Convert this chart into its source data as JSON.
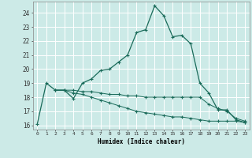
{
  "xlabel": "Humidex (Indice chaleur)",
  "background_color": "#cceae7",
  "grid_color": "#ffffff",
  "line_color": "#1a6b5a",
  "xlim": [
    -0.5,
    23.5
  ],
  "ylim": [
    15.7,
    24.8
  ],
  "xticks": [
    0,
    1,
    2,
    3,
    4,
    5,
    6,
    7,
    8,
    9,
    10,
    11,
    12,
    13,
    14,
    15,
    16,
    17,
    18,
    19,
    20,
    21,
    22,
    23
  ],
  "yticks": [
    16,
    17,
    18,
    19,
    20,
    21,
    22,
    23,
    24
  ],
  "line1_x": [
    0,
    1,
    2,
    3,
    4,
    5,
    6,
    7,
    8,
    9,
    10,
    11,
    12,
    13,
    14,
    15,
    16,
    17,
    18,
    19,
    20,
    21,
    22,
    23
  ],
  "line1_y": [
    16.1,
    19.0,
    18.5,
    18.5,
    17.9,
    19.0,
    19.3,
    19.9,
    20.0,
    20.5,
    21.0,
    22.6,
    22.8,
    24.5,
    23.8,
    22.3,
    22.4,
    21.8,
    19.0,
    18.3,
    17.1,
    17.1,
    16.4,
    16.2
  ],
  "line2_x": [
    2,
    3,
    4,
    5,
    6,
    7,
    8,
    9,
    10,
    11,
    12,
    13,
    14,
    15,
    16,
    17,
    18,
    19,
    20,
    21,
    22,
    23
  ],
  "line2_y": [
    18.5,
    18.5,
    18.5,
    18.4,
    18.4,
    18.3,
    18.2,
    18.2,
    18.1,
    18.1,
    18.0,
    18.0,
    18.0,
    18.0,
    18.0,
    18.0,
    18.0,
    17.5,
    17.2,
    17.0,
    16.5,
    16.3
  ],
  "line3_x": [
    2,
    3,
    4,
    5,
    6,
    7,
    8,
    9,
    10,
    11,
    12,
    13,
    14,
    15,
    16,
    17,
    18,
    19,
    20,
    21,
    22,
    23
  ],
  "line3_y": [
    18.5,
    18.5,
    18.3,
    18.2,
    18.0,
    17.8,
    17.6,
    17.4,
    17.2,
    17.0,
    16.9,
    16.8,
    16.7,
    16.6,
    16.6,
    16.5,
    16.4,
    16.3,
    16.3,
    16.3,
    16.3,
    16.2
  ]
}
